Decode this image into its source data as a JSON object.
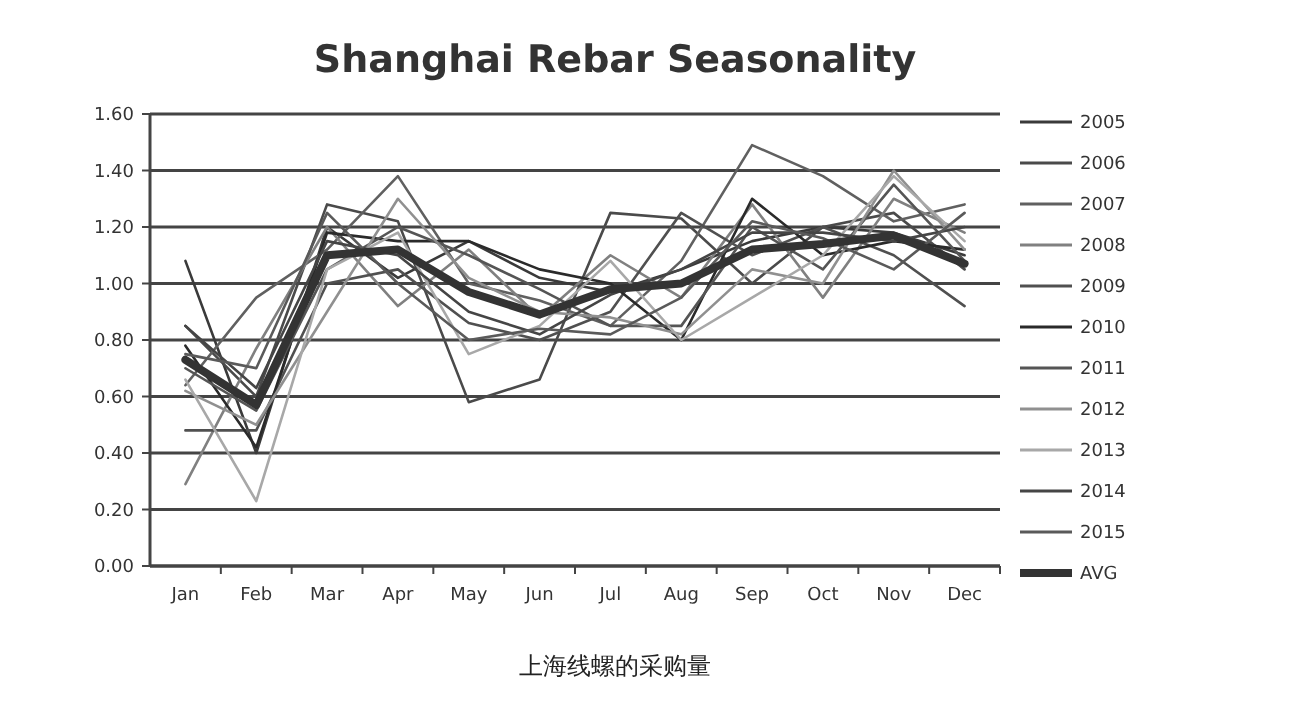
{
  "chart_data": {
    "type": "line",
    "title": "Shanghai Rebar Seasonality",
    "categories": [
      "Jan",
      "Feb",
      "Mar",
      "Apr",
      "May",
      "Jun",
      "Jul",
      "Aug",
      "Sep",
      "Oct",
      "Nov",
      "Dec"
    ],
    "series": [
      {
        "name": "2005",
        "color": "#3a3a3a",
        "values": [
          1.08,
          0.4,
          1.2,
          1.02,
          1.15,
          1.02,
          0.97,
          1.05,
          1.15,
          1.2,
          1.18,
          1.1
        ]
      },
      {
        "name": "2006",
        "color": "#4a4a4a",
        "values": [
          0.85,
          0.6,
          1.28,
          1.22,
          0.58,
          0.66,
          1.25,
          1.23,
          1.0,
          1.2,
          1.25,
          1.05
        ]
      },
      {
        "name": "2007",
        "color": "#606060",
        "values": [
          0.64,
          0.95,
          1.12,
          1.38,
          1.0,
          0.94,
          0.85,
          1.08,
          1.49,
          1.38,
          1.22,
          1.28
        ]
      },
      {
        "name": "2008",
        "color": "#808080",
        "values": [
          0.29,
          0.77,
          1.2,
          0.92,
          1.12,
          0.88,
          1.1,
          0.95,
          1.28,
          0.95,
          1.3,
          1.18
        ]
      },
      {
        "name": "2009",
        "color": "#505050",
        "values": [
          0.48,
          0.48,
          1.0,
          1.05,
          0.86,
          0.8,
          0.9,
          1.25,
          1.1,
          1.2,
          1.1,
          0.92
        ]
      },
      {
        "name": "2010",
        "color": "#2a2a2a",
        "values": [
          0.78,
          0.42,
          1.18,
          1.15,
          1.15,
          1.05,
          1.0,
          0.8,
          1.3,
          1.1,
          1.15,
          1.12
        ]
      },
      {
        "name": "2011",
        "color": "#555555",
        "values": [
          0.7,
          0.55,
          1.05,
          1.2,
          1.1,
          0.98,
          0.85,
          0.85,
          1.2,
          1.05,
          1.35,
          1.08
        ]
      },
      {
        "name": "2012",
        "color": "#909090",
        "values": [
          0.62,
          0.5,
          0.9,
          1.3,
          1.02,
          0.9,
          0.88,
          0.82,
          1.05,
          1.0,
          1.4,
          1.12
        ]
      },
      {
        "name": "2013",
        "color": "#a8a8a8",
        "values": [
          0.66,
          0.23,
          1.05,
          1.18,
          0.75,
          0.85,
          1.08,
          0.8,
          0.95,
          1.1,
          1.38,
          1.15
        ]
      },
      {
        "name": "2014",
        "color": "#454545",
        "values": [
          0.85,
          0.63,
          1.15,
          1.1,
          0.9,
          0.82,
          0.96,
          1.05,
          1.18,
          1.18,
          1.15,
          1.2
        ]
      },
      {
        "name": "2015",
        "color": "#5a5a5a",
        "values": [
          0.75,
          0.7,
          1.25,
          1.0,
          0.8,
          0.84,
          0.82,
          0.95,
          1.22,
          1.16,
          1.05,
          1.25
        ]
      },
      {
        "name": "AVG",
        "color": "#333333",
        "values": [
          0.73,
          0.57,
          1.1,
          1.12,
          0.97,
          0.89,
          0.98,
          1.0,
          1.12,
          1.14,
          1.17,
          1.07
        ]
      }
    ],
    "ylim": [
      0,
      1.6
    ],
    "yticks": [
      {
        "value": 0,
        "label": "0.00"
      },
      {
        "value": 0.2,
        "label": "0.20"
      },
      {
        "value": 0.4,
        "label": "0.40"
      },
      {
        "value": 0.6,
        "label": "0.60"
      },
      {
        "value": 0.8,
        "label": "0.80"
      },
      {
        "value": 1,
        "label": "1.00"
      },
      {
        "value": 1.2,
        "label": "1.20"
      },
      {
        "value": 1.4,
        "label": "1.40"
      },
      {
        "value": 1.6,
        "label": "1.60"
      }
    ],
    "grid": "y",
    "legend": "right",
    "marker": "none",
    "line_style": "solid",
    "annotations": [
      "上海线螺的采购量"
    ]
  }
}
